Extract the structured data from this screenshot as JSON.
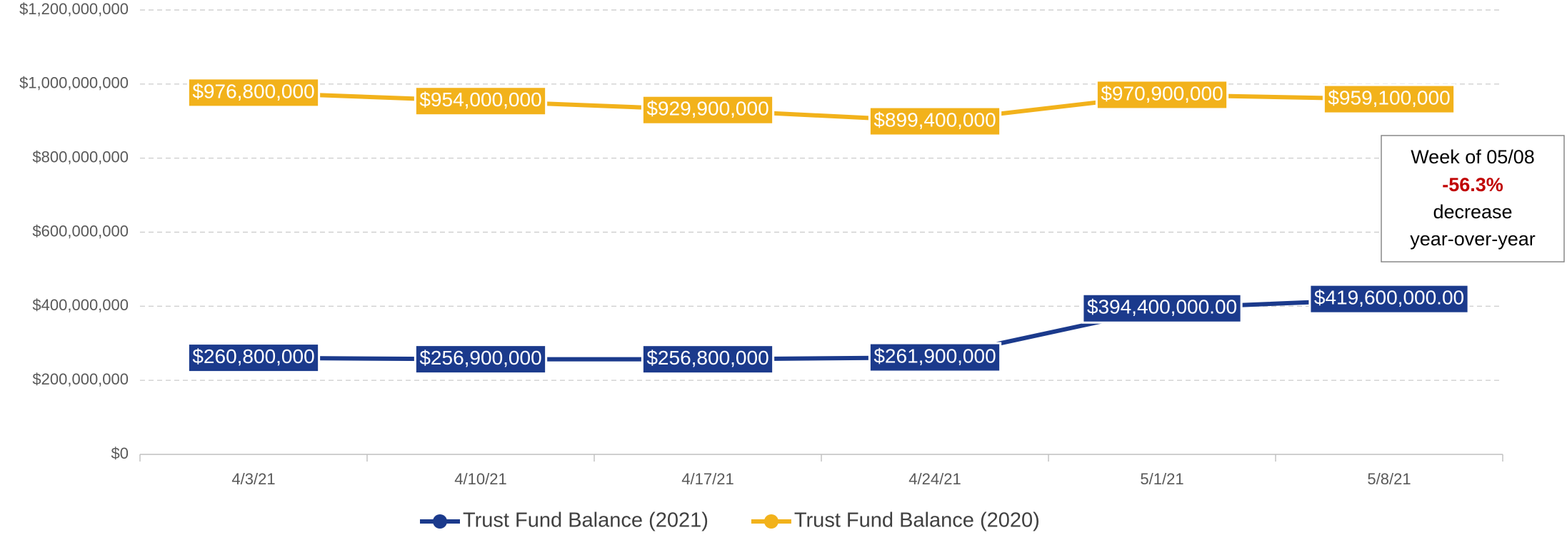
{
  "chart_data": {
    "type": "line",
    "categories": [
      "4/3/21",
      "4/10/21",
      "4/17/21",
      "4/24/21",
      "5/1/21",
      "5/8/21"
    ],
    "series": [
      {
        "name": "Trust Fund Balance (2021)",
        "color": "#1b3a8c",
        "values": [
          260800000,
          256900000,
          256800000,
          261900000,
          394400000,
          419600000
        ],
        "value_labels": [
          "$260,800,000",
          "$256,900,000",
          "$256,800,000",
          "$261,900,000",
          "$394,400,000.00",
          "$419,600,000.00"
        ]
      },
      {
        "name": "Trust Fund Balance (2020)",
        "color": "#f2b21b",
        "values": [
          976800000,
          954000000,
          929900000,
          899400000,
          970900000,
          959100000
        ],
        "value_labels": [
          "$976,800,000",
          "$954,000,000",
          "$929,900,000",
          "$899,400,000",
          "$970,900,000",
          "$959,100,000"
        ]
      }
    ],
    "ylim": [
      0,
      1200000000
    ],
    "yticks": [
      {
        "value": 0,
        "label": "$0"
      },
      {
        "value": 200000000,
        "label": "$200,000,000"
      },
      {
        "value": 400000000,
        "label": "$400,000,000"
      },
      {
        "value": 600000000,
        "label": "$600,000,000"
      },
      {
        "value": 800000000,
        "label": "$800,000,000"
      },
      {
        "value": 1000000000,
        "label": "$1,000,000,000"
      },
      {
        "value": 1200000000,
        "label": "$1,200,000,000"
      }
    ],
    "grid": true,
    "legend": "bottom",
    "annotation": [
      "Week of 05/08",
      "-56.3%",
      "decrease",
      "year-over-year"
    ]
  }
}
